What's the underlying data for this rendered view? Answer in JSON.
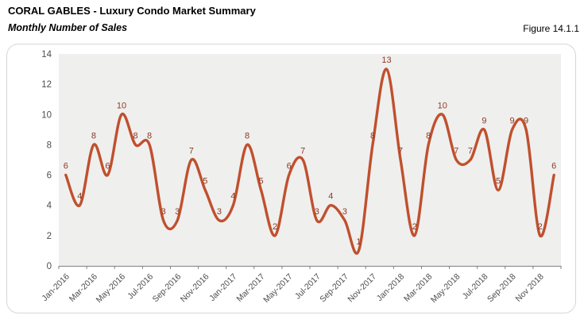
{
  "header": {
    "title": "CORAL GABLES - Luxury Condo Market Summary",
    "subtitle": "Monthly Number of Sales",
    "figure_label": "Figure 14.1.1"
  },
  "chart_data": {
    "type": "line",
    "title": "CORAL GABLES - Luxury Condo Market Summary",
    "subtitle": "Monthly Number of Sales",
    "categories": [
      "Jan-2016",
      "Feb-2016",
      "Mar-2016",
      "Apr-2016",
      "May-2016",
      "Jun-2016",
      "Jul-2016",
      "Aug-2016",
      "Sep-2016",
      "Oct-2016",
      "Nov-2016",
      "Dec-2016",
      "Jan-2017",
      "Feb-2017",
      "Mar-2017",
      "Apr-2017",
      "May-2017",
      "Jun-2017",
      "Jul-2017",
      "Aug-2017",
      "Sep-2017",
      "Oct-2017",
      "Nov-2017",
      "Dec-2017",
      "Jan-2018",
      "Feb-2018",
      "Mar-2018",
      "Apr-2018",
      "May-2018",
      "Jun-2018",
      "Jul-2018",
      "Aug-2018",
      "Sep-2018",
      "Oct-2018",
      "Nov-2018",
      "Dec-2018"
    ],
    "values": [
      6,
      4,
      8,
      6,
      10,
      8,
      8,
      3,
      3,
      7,
      5,
      3,
      4,
      8,
      5,
      2,
      6,
      7,
      3,
      4,
      3,
      1,
      8,
      13,
      7,
      2,
      8,
      10,
      7,
      7,
      9,
      5,
      9,
      9,
      2,
      6
    ],
    "x_tick_labels": [
      "Jan-2016",
      "Mar-2016",
      "May-2016",
      "Jul-2016",
      "Sep-2016",
      "Nov-2016",
      "Jan-2017",
      "Mar-2017",
      "May-2017",
      "Jul-2017",
      "Sep-2017",
      "Nov-2017",
      "Jan-2018",
      "Mar-2018",
      "May-2018",
      "Jul-2018",
      "Sep-2018",
      "Nov 2018"
    ],
    "y_ticks": [
      0,
      2,
      4,
      6,
      8,
      10,
      12,
      14
    ],
    "ylim": [
      0,
      14
    ],
    "xlabel": "",
    "ylabel": "",
    "legend": "none",
    "grid": false,
    "smooth": true,
    "show_data_labels": true,
    "colors": {
      "line": "#c0502d",
      "data_label": "#8e3a23",
      "plot_background": "#efefee",
      "axis_line": "#7f7f7f",
      "tick_text": "#4d4d4d"
    }
  }
}
